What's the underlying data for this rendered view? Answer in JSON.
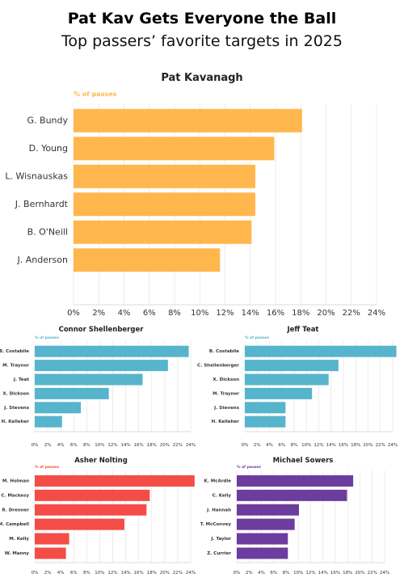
{
  "header": {
    "title": "Pat Kav Gets Everyone the Ball",
    "subtitle": "Top passers’ favorite targets in 2025"
  },
  "chart_data": [
    {
      "type": "bar",
      "orientation": "horizontal",
      "title": "Pat Kavanagh",
      "axis_caption": "% of passes",
      "color": "#FFB74D",
      "categories": [
        "G. Bundy",
        "D. Young",
        "L. Wisnauskas",
        "J. Bernhardt",
        "B. O'Neill",
        "J. Anderson"
      ],
      "values": [
        18.1,
        15.9,
        14.4,
        14.4,
        14.1,
        11.6
      ],
      "xlim": [
        0,
        24
      ],
      "ticks": [
        "0%",
        "2%",
        "4%",
        "6%",
        "8%",
        "10%",
        "12%",
        "14%",
        "16%",
        "18%",
        "20%",
        "22%",
        "24%"
      ],
      "grid": true
    },
    {
      "type": "bar",
      "orientation": "horizontal",
      "title": "Connor Shellenberger",
      "axis_caption": "% of passes",
      "color": "#56B4CC",
      "categories": [
        "B. Costabile",
        "M. Traynor",
        "J. Teat",
        "X. Dickson",
        "J. Stevens",
        "H. Kelleher"
      ],
      "values": [
        23.7,
        20.5,
        16.6,
        11.4,
        7.1,
        4.2
      ],
      "xlim": [
        0,
        24
      ],
      "ticks": [
        "0%",
        "2%",
        "4%",
        "6%",
        "8%",
        "10%",
        "12%",
        "14%",
        "16%",
        "18%",
        "20%",
        "22%",
        "24%"
      ],
      "grid": true
    },
    {
      "type": "bar",
      "orientation": "horizontal",
      "title": "Jeff Teat",
      "axis_caption": "% of passes",
      "color": "#56B4CC",
      "categories": [
        "B. Costabile",
        "C. Shellenberger",
        "X. Dickson",
        "M. Traynor",
        "J. Stevens",
        "H. Kelleher"
      ],
      "values": [
        24.6,
        15.2,
        13.6,
        10.9,
        6.6,
        6.6
      ],
      "xlim": [
        0,
        24
      ],
      "ticks": [
        "0%",
        "2%",
        "4%",
        "6%",
        "8%",
        "10%",
        "12%",
        "14%",
        "16%",
        "18%",
        "20%",
        "22%",
        "24%"
      ],
      "grid": true
    },
    {
      "type": "bar",
      "orientation": "horizontal",
      "title": "Asher Nolting",
      "axis_caption": "% of passes",
      "color": "#F44C47",
      "categories": [
        "M. Holman",
        "C. Mackesy",
        "R. Drenner",
        "M. Campbell",
        "M. Kelly",
        "W. Manny"
      ],
      "values": [
        24.6,
        17.7,
        17.2,
        13.8,
        5.3,
        4.8
      ],
      "xlim": [
        0,
        24
      ],
      "ticks": [
        "0%",
        "2%",
        "4%",
        "6%",
        "8%",
        "10%",
        "12%",
        "14%",
        "16%",
        "18%",
        "20%",
        "22%",
        "24%"
      ],
      "grid": true
    },
    {
      "type": "bar",
      "orientation": "horizontal",
      "title": "Michael Sowers",
      "axis_caption": "% of passes",
      "color": "#6C3C9E",
      "categories": [
        "K. McArdle",
        "C. Kelly",
        "J. Hannah",
        "T. McConvey",
        "J. Taylor",
        "Z. Currier"
      ],
      "values": [
        18.9,
        17.9,
        10.1,
        9.4,
        8.3,
        8.3
      ],
      "xlim": [
        0,
        24
      ],
      "ticks": [
        "0%",
        "2%",
        "4%",
        "6%",
        "8%",
        "10%",
        "12%",
        "14%",
        "16%",
        "18%",
        "20%",
        "22%",
        "24%"
      ],
      "grid": true
    }
  ]
}
